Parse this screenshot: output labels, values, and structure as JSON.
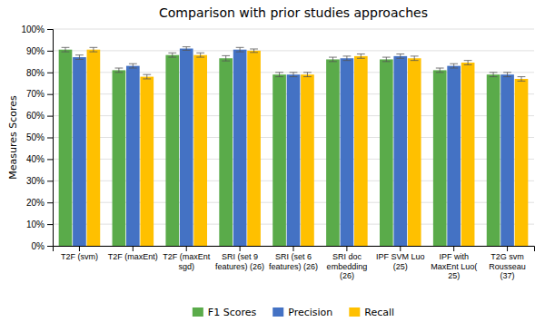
{
  "chart_data": {
    "type": "bar",
    "title": "Comparison with prior studies approaches",
    "ylabel": "Measures Scores",
    "categories": [
      "T2F (svm)",
      "T2F (maxEnt)",
      "T2F (maxEnt\nsgd)",
      "SRI (set 9\nfeatures) (26)",
      "SRI (set 6\nfeatures) (26)",
      "SRI doc\nembedding\n(26)",
      "IPF SVM Luo\n(25)",
      "IPF with\nMaxEnt Luo(\n25)",
      "T2G svm\nRousseau\n(37)"
    ],
    "series": [
      {
        "name": "F1 Scores",
        "color": "#5AAB4A",
        "values": [
          0.905,
          0.81,
          0.88,
          0.865,
          0.79,
          0.86,
          0.86,
          0.81,
          0.79
        ],
        "errors": [
          0.01,
          0.01,
          0.01,
          0.012,
          0.01,
          0.01,
          0.01,
          0.01,
          0.01
        ]
      },
      {
        "name": "Precision",
        "color": "#4472C4",
        "values": [
          0.87,
          0.83,
          0.91,
          0.905,
          0.79,
          0.865,
          0.875,
          0.83,
          0.79
        ],
        "errors": [
          0.01,
          0.01,
          0.008,
          0.01,
          0.01,
          0.01,
          0.01,
          0.01,
          0.01
        ]
      },
      {
        "name": "Recall",
        "color": "#FFC000",
        "values": [
          0.905,
          0.78,
          0.88,
          0.9,
          0.79,
          0.875,
          0.865,
          0.845,
          0.77
        ],
        "errors": [
          0.01,
          0.01,
          0.01,
          0.008,
          0.01,
          0.01,
          0.01,
          0.01,
          0.01
        ]
      }
    ],
    "ylim": [
      0.0,
      1.0
    ],
    "yticks": [
      {
        "value": 0.0,
        "label": "0%"
      },
      {
        "value": 0.1,
        "label": "10%"
      },
      {
        "value": 0.2,
        "label": "20%"
      },
      {
        "value": 0.3,
        "label": "30%"
      },
      {
        "value": 0.4,
        "label": "40%"
      },
      {
        "value": 0.5,
        "label": "50%"
      },
      {
        "value": 0.6,
        "label": "60%"
      },
      {
        "value": 0.7,
        "label": "70%"
      },
      {
        "value": 0.8,
        "label": "80%"
      },
      {
        "value": 0.9,
        "label": "90%"
      },
      {
        "value": 1.0,
        "label": "100%"
      }
    ],
    "grid": true,
    "legend": "bottom"
  }
}
